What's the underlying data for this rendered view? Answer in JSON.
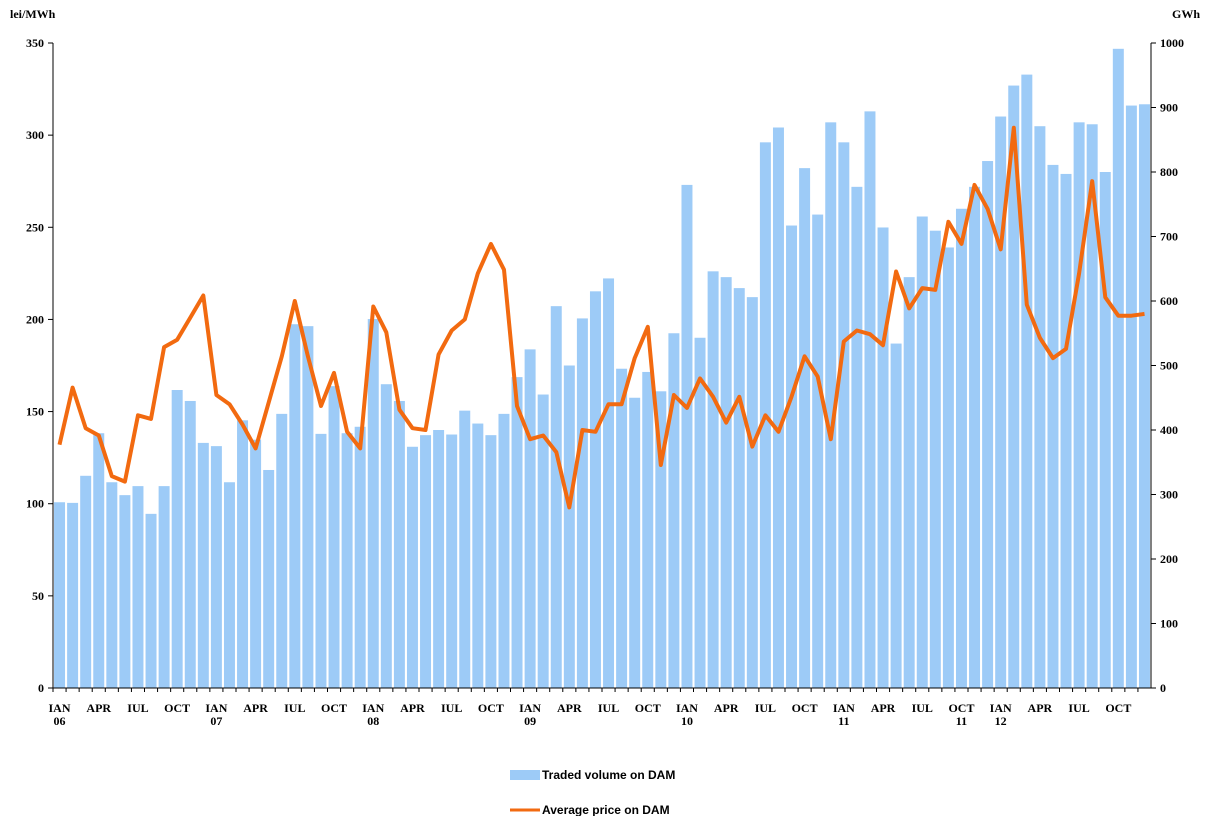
{
  "chart_data": {
    "type": "bar-line",
    "y_label": "lei/MWh",
    "y2_label": "GWh",
    "categories": [
      "IAN\n06",
      null,
      null,
      "APR",
      null,
      null,
      "IUL",
      null,
      null,
      "OCT",
      null,
      null,
      "IAN\n07",
      null,
      null,
      "APR",
      null,
      null,
      "IUL",
      null,
      null,
      "OCT",
      null,
      null,
      "IAN\n08",
      null,
      null,
      "APR",
      null,
      null,
      "IUL",
      null,
      null,
      "OCT",
      null,
      null,
      "IAN\n09",
      null,
      null,
      "APR",
      null,
      null,
      "IUL",
      null,
      null,
      "OCT",
      null,
      null,
      "IAN\n10",
      null,
      null,
      "APR",
      null,
      null,
      "IUL",
      null,
      null,
      "OCT",
      null,
      null,
      "IAN\n11",
      null,
      null,
      "APR",
      null,
      null,
      "IUL",
      null,
      null,
      "OCT\n11",
      null,
      null,
      "IAN\n12",
      null,
      null,
      "APR",
      null,
      null,
      "IUL",
      null,
      null,
      "OCT",
      null,
      null
    ],
    "series": [
      {
        "name": "Traded volume on DAM",
        "color": "#9dcbf7",
        "axis": "y2",
        "kind": "bar",
        "values": [
          288,
          287,
          329,
          395,
          319,
          299,
          313,
          270,
          313,
          462,
          445,
          380,
          375,
          319,
          415,
          385,
          338,
          425,
          564,
          561,
          394,
          468,
          395,
          405,
          572,
          471,
          445,
          374,
          392,
          400,
          393,
          430,
          410,
          392,
          425,
          482,
          525,
          455,
          592,
          500,
          573,
          615,
          635,
          495,
          450,
          490,
          460,
          550,
          780,
          543,
          646,
          637,
          620,
          606,
          846,
          869,
          717,
          806,
          734,
          877,
          846,
          777,
          894,
          714,
          534,
          637,
          731,
          709,
          683,
          743,
          777,
          817,
          886,
          934,
          951,
          871,
          811,
          797,
          877,
          874,
          800,
          991,
          903,
          905
        ]
      },
      {
        "name": "Average price on DAM",
        "color": "#f26a10",
        "axis": "y",
        "kind": "line",
        "values": [
          132,
          163,
          141,
          137,
          115,
          112,
          148,
          146,
          185,
          189,
          201,
          213,
          159,
          154,
          143,
          130,
          155,
          180,
          210,
          180,
          153,
          171,
          139,
          130,
          207,
          193,
          151,
          141,
          140,
          181,
          194,
          200,
          225,
          241,
          227,
          153,
          135,
          137,
          128,
          98,
          140,
          139,
          154,
          154,
          179,
          196,
          121,
          159,
          152,
          168,
          158,
          144,
          158,
          131,
          148,
          139,
          158,
          180,
          169,
          135,
          188,
          194,
          192,
          186,
          226,
          206,
          217,
          216,
          253,
          241,
          273,
          260,
          238,
          304,
          208,
          190,
          179,
          184,
          225,
          275,
          212,
          202,
          202,
          203
        ]
      }
    ],
    "ylim": [
      0,
      350
    ],
    "yticks": [
      0,
      50,
      100,
      150,
      200,
      250,
      300,
      350
    ],
    "y2lim": [
      0,
      1000
    ],
    "y2ticks": [
      0,
      100,
      200,
      300,
      400,
      500,
      600,
      700,
      800,
      900,
      1000
    ]
  }
}
